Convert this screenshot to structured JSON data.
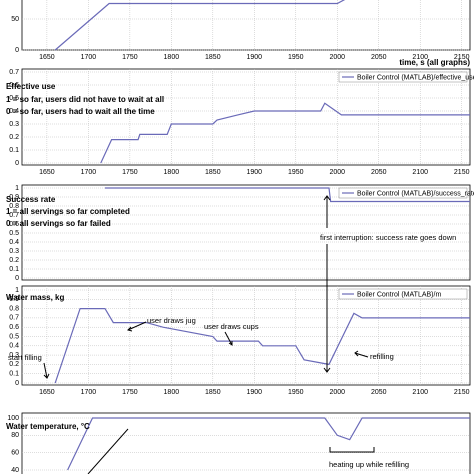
{
  "chart_data": [
    {
      "type": "line",
      "axis_label": "time, s (all graphs)",
      "xlim": [
        1620,
        2160
      ],
      "xticks": [
        1650,
        1700,
        1750,
        1800,
        1850,
        1900,
        1950,
        2000,
        2050,
        2100,
        2150
      ],
      "ylim": [
        0,
        100
      ],
      "yticks": [
        0,
        50
      ],
      "grid": true,
      "x": [
        1660,
        1725,
        2000,
        2035
      ],
      "series": [
        {
          "color": "#6a6ab8",
          "values": [
            0,
            75,
            75,
            100
          ]
        }
      ]
    },
    {
      "type": "line",
      "title": "Effective use",
      "annotations": [
        "1 = so far, users did not have to wait at all",
        "0 = so far, users had to wait all the time"
      ],
      "xlim": [
        1620,
        2160
      ],
      "xticks": [
        1650,
        1700,
        1750,
        1800,
        1850,
        1900,
        1950,
        2000,
        2050,
        2100,
        2150
      ],
      "ylim": [
        0,
        0.7
      ],
      "yticks": [
        0,
        0.1,
        0.2,
        0.3,
        0.4,
        0.5,
        0.6,
        0.7
      ],
      "grid": true,
      "x": [
        1715,
        1728,
        1760,
        1762,
        1795,
        1800,
        1850,
        1855,
        1880,
        1900,
        1980,
        1985,
        2005,
        2010,
        2160
      ],
      "series": [
        {
          "name": "Boiler Control (MATLAB)/effective_use",
          "color": "#6a6ab8",
          "values": [
            0,
            0.18,
            0.18,
            0.22,
            0.22,
            0.3,
            0.3,
            0.33,
            0.37,
            0.4,
            0.4,
            0.46,
            0.37,
            0.37,
            0.37
          ]
        }
      ]
    },
    {
      "type": "line",
      "title": "Success rate",
      "annotations": [
        "1 = all servings so far completed",
        "0 = all servings so far failed",
        "first interruption:  success rate goes down"
      ],
      "xlim": [
        1620,
        2160
      ],
      "ylim": [
        0,
        1
      ],
      "yticks": [
        0,
        0.1,
        0.2,
        0.3,
        0.4,
        0.5,
        0.6,
        0.7,
        0.8,
        0.9,
        1
      ],
      "grid": true,
      "x": [
        1720,
        1990,
        1992,
        2160
      ],
      "series": [
        {
          "name": "Boiler Control (MATLAB)/success_rate",
          "color": "#6a6ab8",
          "values": [
            1,
            1,
            0.85,
            0.85
          ]
        }
      ]
    },
    {
      "type": "line",
      "title": "Water mass, kg",
      "annotations": [
        "user draws jug",
        "user draws cups",
        "start filling",
        "refilling"
      ],
      "xlim": [
        1620,
        2160
      ],
      "xticks": [
        1650,
        1700,
        1750,
        1800,
        1850,
        1900,
        1950,
        2000,
        2050,
        2100,
        2150
      ],
      "ylim": [
        0,
        1
      ],
      "yticks": [
        0,
        0.1,
        0.2,
        0.3,
        0.4,
        0.5,
        0.6,
        0.7,
        0.8,
        0.9,
        1
      ],
      "grid": true,
      "x": [
        1660,
        1690,
        1720,
        1730,
        1770,
        1790,
        1850,
        1855,
        1905,
        1910,
        1950,
        1960,
        1990,
        2020,
        2030,
        2160
      ],
      "series": [
        {
          "name": "Boiler Control (MATLAB)/m",
          "color": "#6a6ab8",
          "values": [
            0,
            0.8,
            0.8,
            0.65,
            0.65,
            0.6,
            0.5,
            0.45,
            0.45,
            0.4,
            0.4,
            0.25,
            0.2,
            0.75,
            0.7,
            0.7
          ]
        }
      ]
    },
    {
      "type": "line",
      "title": "Water temperature, °C",
      "annotations": [
        "heating up while refilling"
      ],
      "xlim": [
        1620,
        2160
      ],
      "ylim": [
        40,
        100
      ],
      "yticks": [
        40,
        60,
        80,
        100
      ],
      "grid": true,
      "x": [
        1675,
        1705,
        1985,
        2000,
        2015,
        2030,
        2160
      ],
      "series": [
        {
          "color": "#6a6ab8",
          "values": [
            40,
            100,
            100,
            80,
            75,
            100,
            100
          ]
        }
      ]
    }
  ]
}
